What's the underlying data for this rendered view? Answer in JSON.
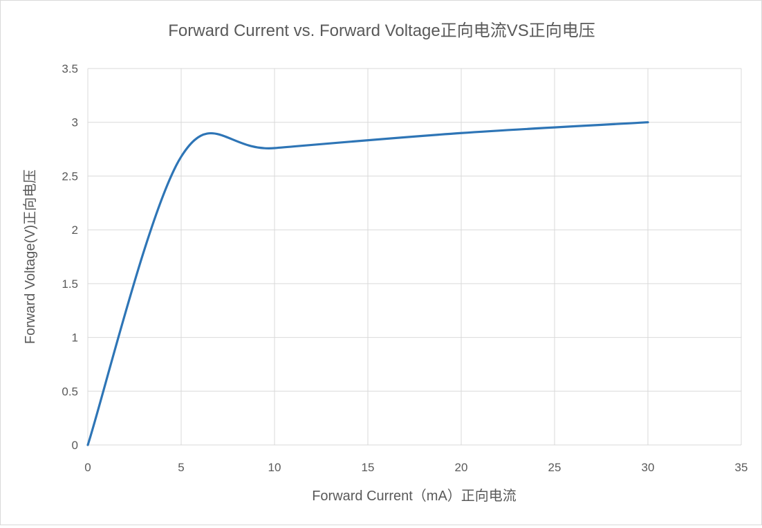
{
  "chart_data": {
    "type": "line",
    "title": "Forward Current vs. Forward Voltage正向电流VS正向电压",
    "xlabel": "Forward Current（mA）正向电流",
    "ylabel": "Forward Voltage(V)正向电压",
    "xlim": [
      0,
      35
    ],
    "ylim": [
      0,
      3.5
    ],
    "x_ticks": [
      "0",
      "5",
      "10",
      "15",
      "20",
      "25",
      "30",
      "35"
    ],
    "y_ticks": [
      "0",
      "0.5",
      "1",
      "1.5",
      "2",
      "2.5",
      "3",
      "3.5"
    ],
    "grid": true,
    "legend": "none",
    "smooth": true,
    "series": [
      {
        "color": "#2e75b6",
        "x": [
          0,
          5,
          10,
          20,
          30
        ],
        "y": [
          0,
          2.68,
          2.76,
          2.9,
          3.0
        ]
      }
    ]
  }
}
